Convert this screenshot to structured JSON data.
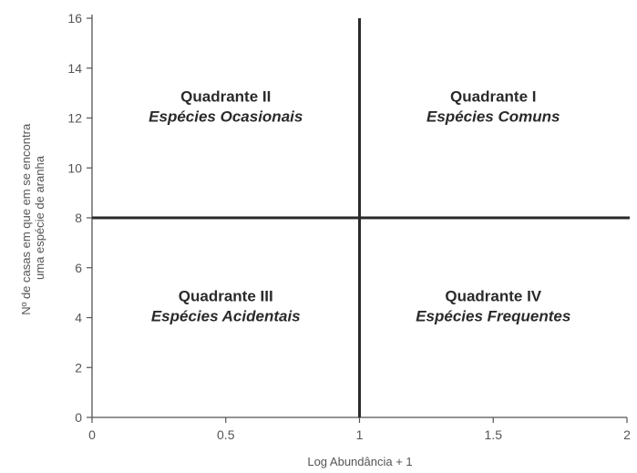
{
  "chart_data": {
    "type": "scatter",
    "title": "",
    "xlabel": "Log Abundância + 1",
    "ylabel_lines": [
      "Nº de casas em que em se encontra",
      "uma espécie de aranha"
    ],
    "xlim": [
      0,
      2
    ],
    "ylim": [
      0,
      16
    ],
    "x_ticks": [
      0,
      0.5,
      1,
      1.5,
      2
    ],
    "x_tick_labels": [
      "0",
      "0.5",
      "1",
      "1.5",
      "2"
    ],
    "y_ticks": [
      0,
      2,
      4,
      6,
      8,
      10,
      12,
      14,
      16
    ],
    "y_tick_labels": [
      "0",
      "2",
      "4",
      "6",
      "8",
      "10",
      "12",
      "14",
      "16"
    ],
    "grid": false,
    "legend": "none",
    "divider_x": 1,
    "divider_y": 8,
    "quadrants": [
      {
        "id": "ii",
        "title": "Quadrante II",
        "subtitle": "Espécies Ocasionais",
        "x": 0.5,
        "y": 12
      },
      {
        "id": "i",
        "title": "Quadrante I",
        "subtitle": "Espécies Comuns",
        "x": 1.5,
        "y": 12
      },
      {
        "id": "iii",
        "title": "Quadrante III",
        "subtitle": "Espécies Acidentais",
        "x": 0.5,
        "y": 4
      },
      {
        "id": "iv",
        "title": "Quadrante IV",
        "subtitle": "Espécies Frequentes",
        "x": 1.5,
        "y": 4
      }
    ],
    "colors": {
      "axis": "#555555",
      "divider": "#2a2a2a",
      "text": "#2a2a2a",
      "tick_text": "#555555"
    }
  }
}
